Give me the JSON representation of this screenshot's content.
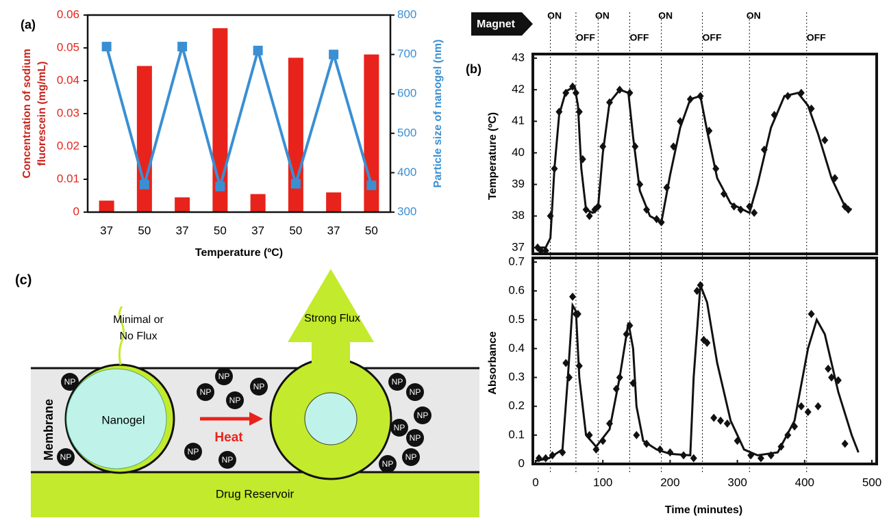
{
  "chart_data": [
    {
      "type": "combo",
      "panel_label": "(a)",
      "categories": [
        "37",
        "50",
        "37",
        "50",
        "37",
        "50",
        "37",
        "50"
      ],
      "series": [
        {
          "type": "bar",
          "axis": "y",
          "color": "#e8231b",
          "values": [
            0.0035,
            0.0445,
            0.0045,
            0.056,
            0.0055,
            0.047,
            0.006,
            0.048
          ]
        },
        {
          "type": "line",
          "axis": "y2",
          "color": "#3a8fd3",
          "values": [
            720,
            370,
            720,
            365,
            710,
            372,
            700,
            368
          ]
        }
      ],
      "ylim": [
        0,
        0.06
      ],
      "yticks": [
        0,
        0.01,
        0.02,
        0.03,
        0.04,
        0.05,
        0.06
      ],
      "y2lim": [
        300,
        800
      ],
      "y2ticks": [
        300,
        400,
        500,
        600,
        700,
        800
      ],
      "ylabel": [
        "Concentration of sodium",
        "fluorescein (mg/mL)"
      ],
      "y2label": "Particle size of nanogel (nm)",
      "xlabel": "Temperature (ºC)"
    },
    {
      "type": "line",
      "panel_label": "(b)",
      "color": "#111111",
      "magnet_label": "Magnet",
      "events": [
        {
          "x": 22,
          "label": "ON"
        },
        {
          "x": 60,
          "label": "OFF"
        },
        {
          "x": 93,
          "label": "ON"
        },
        {
          "x": 140,
          "label": "OFF"
        },
        {
          "x": 187,
          "label": "ON"
        },
        {
          "x": 248,
          "label": "OFF"
        },
        {
          "x": 318,
          "label": "ON"
        },
        {
          "x": 403,
          "label": "OFF"
        }
      ],
      "series": [
        {
          "style": "line",
          "x": [
            0,
            15,
            22,
            28,
            35,
            45,
            58,
            63,
            68,
            75,
            85,
            93,
            100,
            110,
            125,
            138,
            145,
            155,
            170,
            187,
            200,
            215,
            230,
            245,
            255,
            270,
            290,
            318,
            330,
            350,
            370,
            390,
            405,
            420,
            440,
            460,
            470
          ],
          "values": [
            37,
            37,
            37.3,
            39.5,
            41.2,
            41.95,
            42.1,
            41.5,
            39.5,
            38.2,
            38.1,
            38.3,
            40,
            41.6,
            42,
            41.9,
            40.5,
            38.8,
            38,
            37.8,
            39.3,
            40.8,
            41.7,
            41.8,
            40.7,
            39.2,
            38.4,
            38.1,
            39,
            40.8,
            41.8,
            41.9,
            41.5,
            40.6,
            39.2,
            38.3,
            38.2
          ]
        },
        {
          "style": "markers",
          "x": [
            3,
            8,
            15,
            22,
            28,
            35,
            45,
            55,
            60,
            65,
            70,
            75,
            80,
            88,
            93,
            100,
            110,
            125,
            140,
            148,
            155,
            165,
            180,
            187,
            195,
            205,
            215,
            230,
            245,
            258,
            268,
            280,
            295,
            305,
            318,
            325,
            340,
            355,
            375,
            395,
            410,
            430,
            445,
            460,
            465
          ],
          "values": [
            37,
            36.9,
            36.9,
            38,
            39.5,
            41.3,
            41.9,
            42.1,
            41.9,
            41.3,
            39.8,
            38.2,
            38,
            38.2,
            38.3,
            40.2,
            41.6,
            42,
            41.9,
            40.2,
            39,
            38.2,
            37.9,
            37.8,
            38.9,
            40.2,
            41,
            41.7,
            41.8,
            40.7,
            39.5,
            38.7,
            38.3,
            38.2,
            38.3,
            38.1,
            40.1,
            41.2,
            41.8,
            41.9,
            41.4,
            40.4,
            39.2,
            38.3,
            38.2
          ]
        }
      ],
      "xlim": [
        0,
        500
      ],
      "ylim": [
        36.8,
        43
      ],
      "yticks": [
        37,
        38,
        39,
        40,
        41,
        42,
        43
      ],
      "ylabel": "Temperature (ºC)"
    },
    {
      "type": "line",
      "color": "#111111",
      "series": [
        {
          "style": "line",
          "x": [
            0,
            20,
            40,
            48,
            55,
            60,
            65,
            75,
            90,
            110,
            125,
            138,
            145,
            150,
            160,
            180,
            200,
            230,
            235,
            245,
            255,
            270,
            290,
            310,
            330,
            360,
            385,
            405,
            418,
            430,
            450,
            470,
            480
          ],
          "values": [
            0.01,
            0.02,
            0.05,
            0.3,
            0.55,
            0.53,
            0.3,
            0.1,
            0.06,
            0.12,
            0.3,
            0.49,
            0.4,
            0.2,
            0.08,
            0.05,
            0.035,
            0.03,
            0.3,
            0.62,
            0.56,
            0.35,
            0.15,
            0.05,
            0.03,
            0.04,
            0.15,
            0.4,
            0.5,
            0.45,
            0.25,
            0.1,
            0.04
          ]
        },
        {
          "style": "markers",
          "x": [
            5,
            15,
            25,
            40,
            45,
            50,
            55,
            60,
            63,
            65,
            80,
            90,
            100,
            110,
            120,
            125,
            135,
            140,
            145,
            150,
            165,
            185,
            200,
            220,
            235,
            240,
            245,
            250,
            255,
            265,
            275,
            285,
            300,
            320,
            335,
            350,
            365,
            375,
            385,
            395,
            405,
            410,
            420,
            435,
            440,
            450,
            460
          ],
          "values": [
            0.02,
            0.02,
            0.03,
            0.04,
            0.35,
            0.3,
            0.58,
            0.52,
            0.52,
            0.34,
            0.1,
            0.05,
            0.08,
            0.14,
            0.26,
            0.3,
            0.45,
            0.48,
            0.28,
            0.1,
            0.07,
            0.05,
            0.04,
            0.03,
            0.02,
            0.6,
            0.62,
            0.43,
            0.42,
            0.16,
            0.15,
            0.14,
            0.08,
            0.03,
            0.02,
            0.03,
            0.06,
            0.1,
            0.13,
            0.2,
            0.18,
            0.52,
            0.2,
            0.33,
            0.3,
            0.29,
            0.07
          ]
        }
      ],
      "xlim": [
        0,
        500
      ],
      "xticks": [
        0,
        100,
        200,
        300,
        400,
        500
      ],
      "ylim": [
        0,
        0.7
      ],
      "yticks": [
        0,
        0.1,
        0.2,
        0.3,
        0.4,
        0.5,
        0.6,
        0.7
      ],
      "ylabel": "Absorbance",
      "xlabel": "Time (minutes)"
    }
  ],
  "diagram": {
    "panel_label": "(c)",
    "left_flux": [
      "Minimal or",
      "No Flux"
    ],
    "right_flux": "Strong Flux",
    "membrane": "Membrane",
    "nanogel": "Nanogel",
    "heat": "Heat",
    "reservoir": "Drug Reservoir",
    "particle": "NP"
  }
}
